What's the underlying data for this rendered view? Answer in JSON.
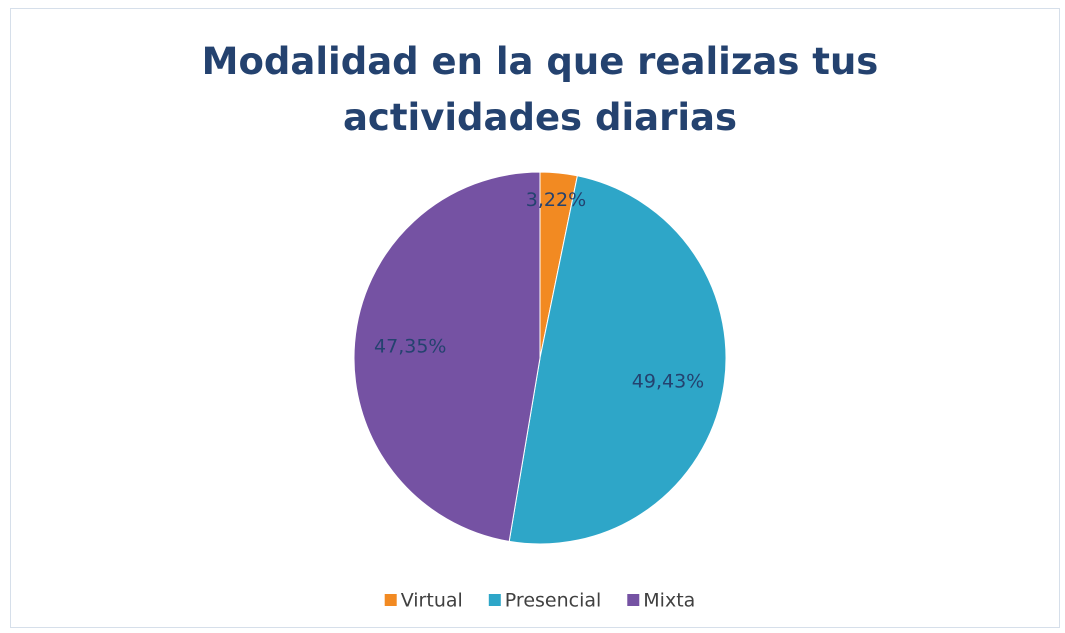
{
  "chart_data": {
    "type": "pie",
    "title": "Modalidad en la que realizas tus actividades diarias",
    "categories": [
      "Virtual",
      "Presencial",
      "Mixta"
    ],
    "values": [
      3.22,
      49.43,
      47.35
    ],
    "value_labels": [
      "3,22%",
      "49,43%",
      "47,35%"
    ],
    "colors": [
      "#f28a22",
      "#2ea6c8",
      "#7552a3"
    ],
    "legend": "bottom"
  }
}
